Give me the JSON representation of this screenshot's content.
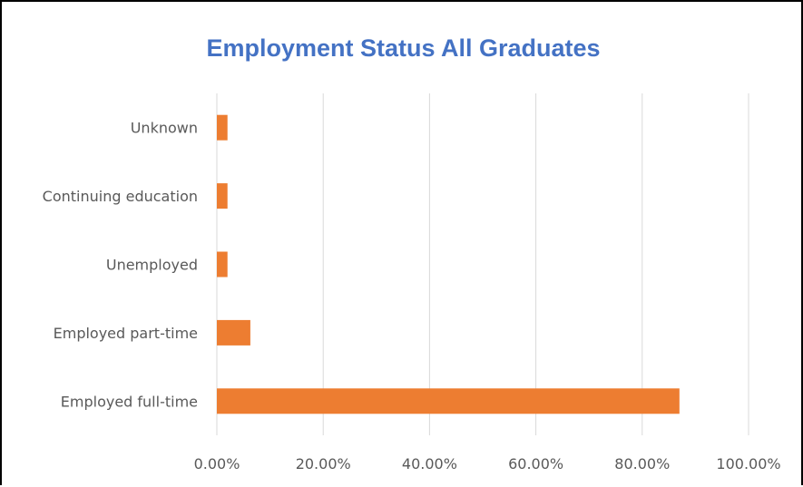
{
  "chart_data": {
    "type": "bar",
    "orientation": "horizontal",
    "title": "Employment Status All Graduates",
    "xlabel": "",
    "ylabel": "",
    "categories": [
      "Unknown",
      "Continuing education",
      "Unemployed",
      "Employed part-time",
      "Employed full-time"
    ],
    "values": [
      0.02,
      0.02,
      0.02,
      0.063,
      0.87
    ],
    "xlim": [
      0,
      1.0
    ],
    "x_ticks": [
      "0.00%",
      "20.00%",
      "40.00%",
      "60.00%",
      "80.00%",
      "100.00%"
    ],
    "grid": "vertical",
    "legend": "none",
    "bar_color": "#ed7d31",
    "title_color": "#4472c4",
    "gridline_color": "#d9d9d9",
    "text_color": "#595959"
  }
}
